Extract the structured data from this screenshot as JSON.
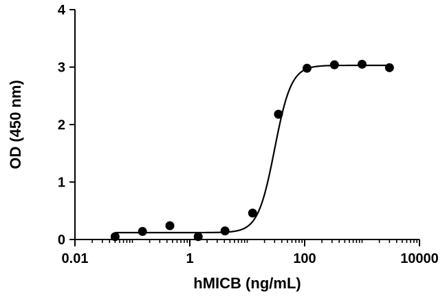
{
  "chart_data": {
    "type": "scatter",
    "xscale": "log",
    "xlabel": "hMICB (ng/mL)",
    "ylabel": "OD (450 nm)",
    "xlim": [
      0.01,
      10000
    ],
    "ylim": [
      0,
      4
    ],
    "x_ticks": [
      {
        "value": 0.01,
        "label": "0.01"
      },
      {
        "value": 1,
        "label": "1"
      },
      {
        "value": 100,
        "label": "100"
      },
      {
        "value": 10000,
        "label": "10000"
      }
    ],
    "y_ticks": [
      {
        "value": 0,
        "label": "0"
      },
      {
        "value": 1,
        "label": "1"
      },
      {
        "value": 2,
        "label": "2"
      },
      {
        "value": 3,
        "label": "3"
      },
      {
        "value": 4,
        "label": "4"
      }
    ],
    "points": [
      {
        "x": 0.05,
        "y": 0.05
      },
      {
        "x": 0.15,
        "y": 0.14
      },
      {
        "x": 0.45,
        "y": 0.24
      },
      {
        "x": 1.4,
        "y": 0.05
      },
      {
        "x": 4.1,
        "y": 0.15
      },
      {
        "x": 12.4,
        "y": 0.46
      },
      {
        "x": 35,
        "y": 2.18
      },
      {
        "x": 110,
        "y": 2.98
      },
      {
        "x": 330,
        "y": 3.04
      },
      {
        "x": 1000,
        "y": 3.05
      },
      {
        "x": 3000,
        "y": 2.99
      }
    ],
    "fit": {
      "bottom": 0.12,
      "top": 3.03,
      "ec50": 30,
      "hill": 3.0,
      "x_range": [
        0.05,
        3000
      ]
    },
    "grid": false,
    "legend": "none"
  }
}
